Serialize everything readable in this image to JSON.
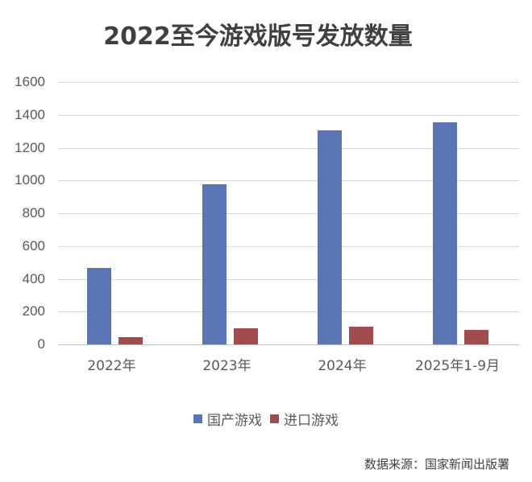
{
  "title": "2022至今游戏版号发放数量",
  "legend": [
    {
      "label": "国产游戏",
      "color": "#5b74b4"
    },
    {
      "label": "进口游戏",
      "color": "#a04b4e"
    }
  ],
  "source": "数据来源：国家新闻出版署",
  "y_ticks": [
    "1600",
    "1400",
    "1200",
    "1000",
    "800",
    "600",
    "400",
    "200",
    "0"
  ],
  "x_ticks": [
    "2022年",
    "2023年",
    "2024年",
    "2025年1-9月"
  ],
  "chart_data": {
    "type": "bar",
    "title": "2022至今游戏版号发放数量",
    "categories": [
      "2022年",
      "2023年",
      "2024年",
      "2025年1-9月"
    ],
    "series": [
      {
        "name": "国产游戏",
        "color": "#5b74b4",
        "values": [
          468,
          977,
          1306,
          1354
        ]
      },
      {
        "name": "进口游戏",
        "color": "#a04b4e",
        "values": [
          44,
          98,
          110,
          86
        ]
      }
    ],
    "xlabel": "",
    "ylabel": "",
    "ylim": [
      0,
      1600
    ],
    "yticks": [
      0,
      200,
      400,
      600,
      800,
      1000,
      1200,
      1400,
      1600
    ],
    "grid": true,
    "legend_position": "bottom",
    "annotations": [
      "数据来源：国家新闻出版署"
    ]
  }
}
